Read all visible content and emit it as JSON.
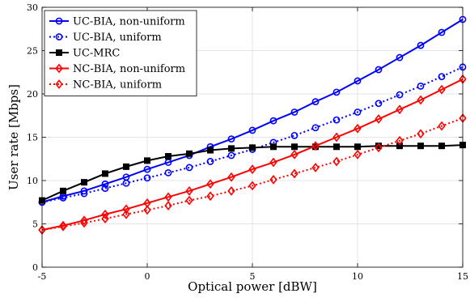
{
  "chart_data": {
    "type": "line",
    "xlabel": "Optical power [dBW]",
    "ylabel": "User rate [Mbps]",
    "xlim": [
      -5,
      15
    ],
    "ylim": [
      0,
      30
    ],
    "xticks": [
      -5,
      0,
      5,
      10,
      15
    ],
    "yticks": [
      0,
      5,
      10,
      15,
      20,
      25,
      30
    ],
    "grid": true,
    "legend_position": "top-left",
    "x": [
      -5,
      -4,
      -3,
      -2,
      -1,
      0,
      1,
      2,
      3,
      4,
      5,
      6,
      7,
      8,
      9,
      10,
      11,
      12,
      13,
      14,
      15
    ],
    "series": [
      {
        "name": "UC-BIA, non-uniform",
        "color": "#0000ff",
        "line": "solid",
        "marker": "circle",
        "values": [
          7.5,
          8.2,
          8.8,
          9.6,
          10.4,
          11.3,
          12.1,
          12.9,
          13.9,
          14.8,
          15.8,
          16.9,
          17.9,
          19.1,
          20.2,
          21.5,
          22.8,
          24.2,
          25.6,
          27.1,
          28.6
        ]
      },
      {
        "name": "UC-BIA, uniform",
        "color": "#0000ff",
        "line": "dotted",
        "marker": "circle",
        "values": [
          7.5,
          8.0,
          8.5,
          9.1,
          9.7,
          10.3,
          10.9,
          11.5,
          12.2,
          12.9,
          13.6,
          14.4,
          15.2,
          16.1,
          17.0,
          17.9,
          18.9,
          19.9,
          20.9,
          22.0,
          23.1
        ]
      },
      {
        "name": "UC-MRC",
        "color": "#000000",
        "line": "solid",
        "marker": "square",
        "values": [
          7.7,
          8.8,
          9.8,
          10.8,
          11.6,
          12.3,
          12.8,
          13.1,
          13.5,
          13.7,
          13.8,
          13.9,
          13.9,
          13.9,
          13.9,
          13.9,
          14.0,
          14.0,
          14.0,
          14.0,
          14.1
        ]
      },
      {
        "name": "NC-BIA, non-uniform",
        "color": "#ff0000",
        "line": "solid",
        "marker": "diamond",
        "values": [
          4.3,
          4.8,
          5.4,
          6.1,
          6.7,
          7.4,
          8.1,
          8.8,
          9.6,
          10.4,
          11.3,
          12.1,
          13.0,
          14.0,
          15.0,
          16.0,
          17.1,
          18.2,
          19.3,
          20.5,
          21.7
        ]
      },
      {
        "name": "NC-BIA, uniform",
        "color": "#ff0000",
        "line": "dotted",
        "marker": "diamond",
        "values": [
          4.3,
          4.7,
          5.1,
          5.6,
          6.1,
          6.6,
          7.1,
          7.7,
          8.2,
          8.8,
          9.4,
          10.1,
          10.8,
          11.5,
          12.2,
          13.0,
          13.8,
          14.6,
          15.4,
          16.3,
          17.2
        ]
      }
    ]
  }
}
